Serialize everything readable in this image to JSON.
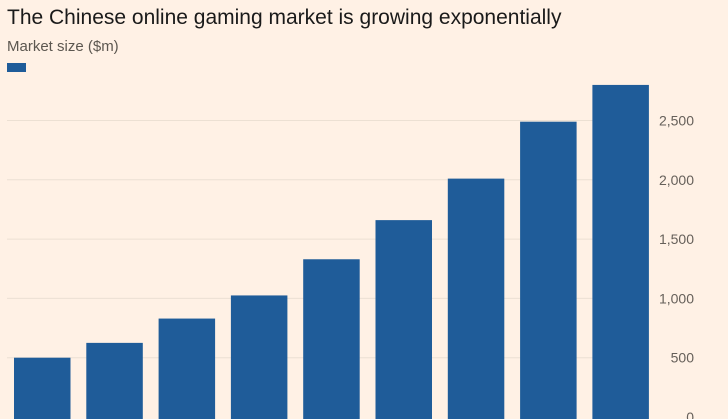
{
  "chart_data": {
    "type": "bar",
    "title": "The Chinese online gaming market is growing exponentially",
    "ylabel": "Market size ($m)",
    "series": [
      {
        "name": "",
        "color": "#1f5c99"
      }
    ],
    "values": [
      500,
      625,
      830,
      1025,
      1330,
      1660,
      2010,
      2490,
      2800
    ],
    "ylim": [
      0,
      2800
    ],
    "yticks": [
      0,
      500,
      1000,
      1500,
      2000,
      2500
    ],
    "ytick_labels": [
      "0",
      "500",
      "1,000",
      "1,500",
      "2,000",
      "2,500"
    ],
    "grid": true,
    "colors": {
      "background": "#fff1e5",
      "bar": "#1f5c99",
      "grid": "#ece0d3",
      "tick_text": "#66605a"
    }
  }
}
